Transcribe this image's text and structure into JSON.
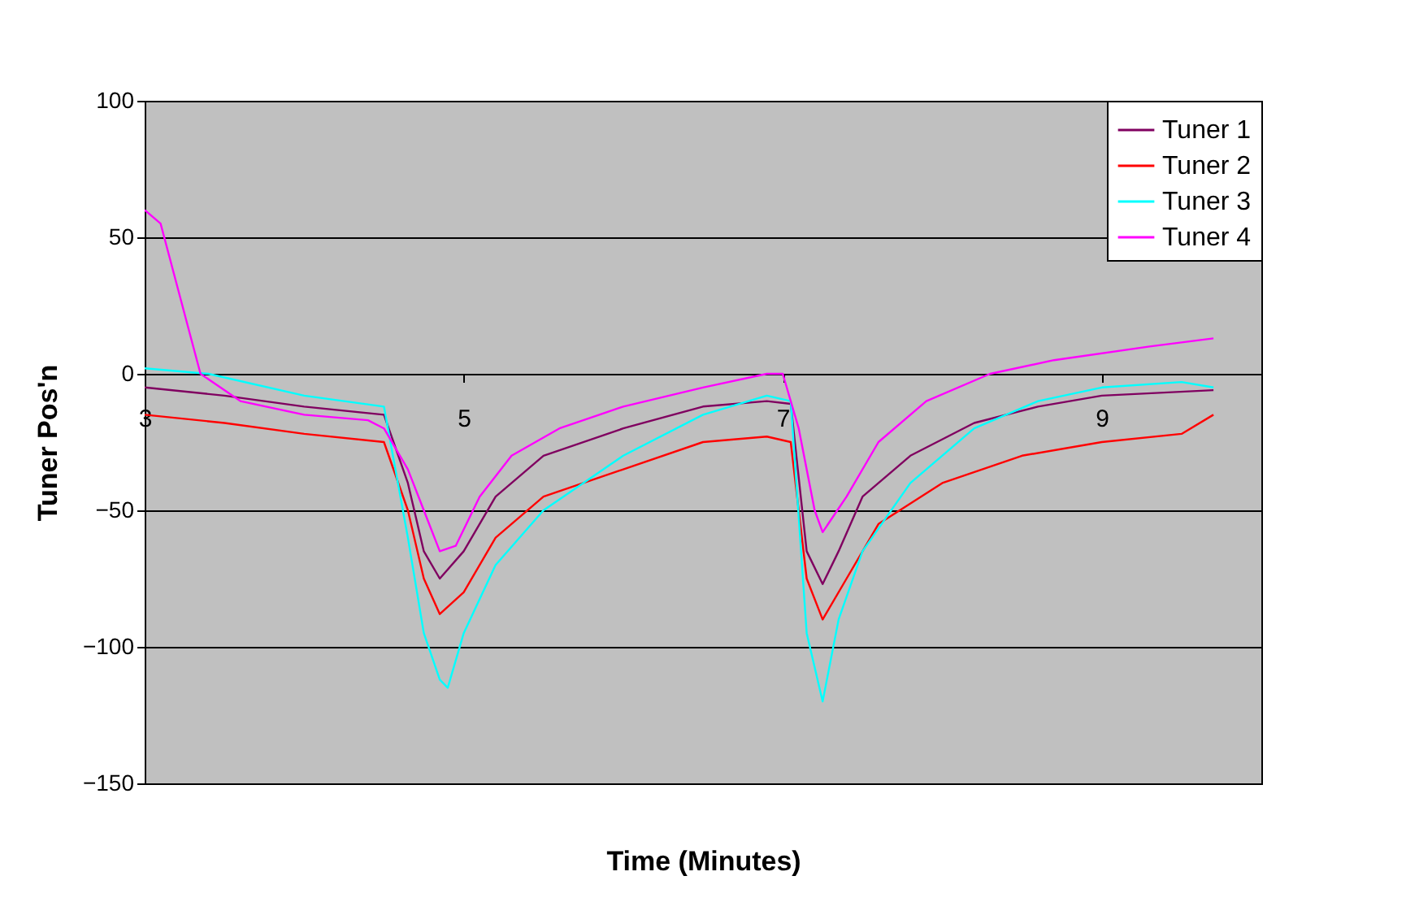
{
  "chart_data": {
    "type": "line",
    "xlabel": "Time (Minutes)",
    "ylabel": "Tuner Pos'n",
    "xlim": [
      3,
      10
    ],
    "xticks": [
      3,
      5,
      7,
      9
    ],
    "ylim": [
      -150,
      100
    ],
    "yticks": [
      -150,
      -100,
      -50,
      0,
      50,
      100
    ],
    "grid": "y",
    "legend": "top right",
    "marker": "none",
    "line_style": "solid",
    "series": [
      {
        "name": "Tuner 1",
        "color": "#800060",
        "x": [
          3,
          3.5,
          4,
          4.5,
          4.65,
          4.75,
          4.85,
          5.0,
          5.2,
          5.5,
          6,
          6.5,
          6.9,
          7.05,
          7.15,
          7.25,
          7.35,
          7.5,
          7.8,
          8.2,
          8.6,
          9,
          9.7
        ],
        "values": [
          -5,
          -8,
          -12,
          -15,
          -40,
          -65,
          -75,
          -65,
          -45,
          -30,
          -20,
          -12,
          -10,
          -11,
          -65,
          -77,
          -65,
          -45,
          -30,
          -18,
          -12,
          -8,
          -6
        ]
      },
      {
        "name": "Tuner 2",
        "color": "#ff0000",
        "x": [
          3,
          3.5,
          4,
          4.5,
          4.65,
          4.75,
          4.85,
          5.0,
          5.2,
          5.5,
          6,
          6.5,
          6.9,
          7.05,
          7.15,
          7.25,
          7.4,
          7.6,
          8,
          8.5,
          9,
          9.5,
          9.7
        ],
        "values": [
          -15,
          -18,
          -22,
          -25,
          -50,
          -75,
          -88,
          -80,
          -60,
          -45,
          -35,
          -25,
          -23,
          -25,
          -75,
          -90,
          -75,
          -55,
          -40,
          -30,
          -25,
          -22,
          -15
        ]
      },
      {
        "name": "Tuner 3",
        "color": "#00ffff",
        "x": [
          3,
          3.4,
          4,
          4.5,
          4.65,
          4.75,
          4.85,
          4.9,
          5.0,
          5.2,
          5.5,
          6,
          6.5,
          6.9,
          7.05,
          7.15,
          7.25,
          7.35,
          7.5,
          7.8,
          8.2,
          8.6,
          9,
          9.5,
          9.7
        ],
        "values": [
          2,
          0,
          -8,
          -12,
          -60,
          -95,
          -112,
          -115,
          -95,
          -70,
          -50,
          -30,
          -15,
          -8,
          -10,
          -95,
          -120,
          -90,
          -65,
          -40,
          -20,
          -10,
          -5,
          -3,
          -5
        ]
      },
      {
        "name": "Tuner 4",
        "color": "#ff00ff",
        "x": [
          3,
          3.1,
          3.35,
          3.6,
          4,
          4.4,
          4.5,
          4.65,
          4.75,
          4.85,
          4.95,
          5.1,
          5.3,
          5.6,
          6,
          6.5,
          6.9,
          7.0,
          7.1,
          7.2,
          7.25,
          7.4,
          7.6,
          7.9,
          8.3,
          8.7,
          9.3,
          9.7
        ],
        "values": [
          60,
          55,
          0,
          -10,
          -15,
          -17,
          -20,
          -35,
          -50,
          -65,
          -63,
          -45,
          -30,
          -20,
          -12,
          -5,
          0,
          0,
          -20,
          -50,
          -58,
          -45,
          -25,
          -10,
          0,
          5,
          10,
          13
        ]
      }
    ]
  }
}
